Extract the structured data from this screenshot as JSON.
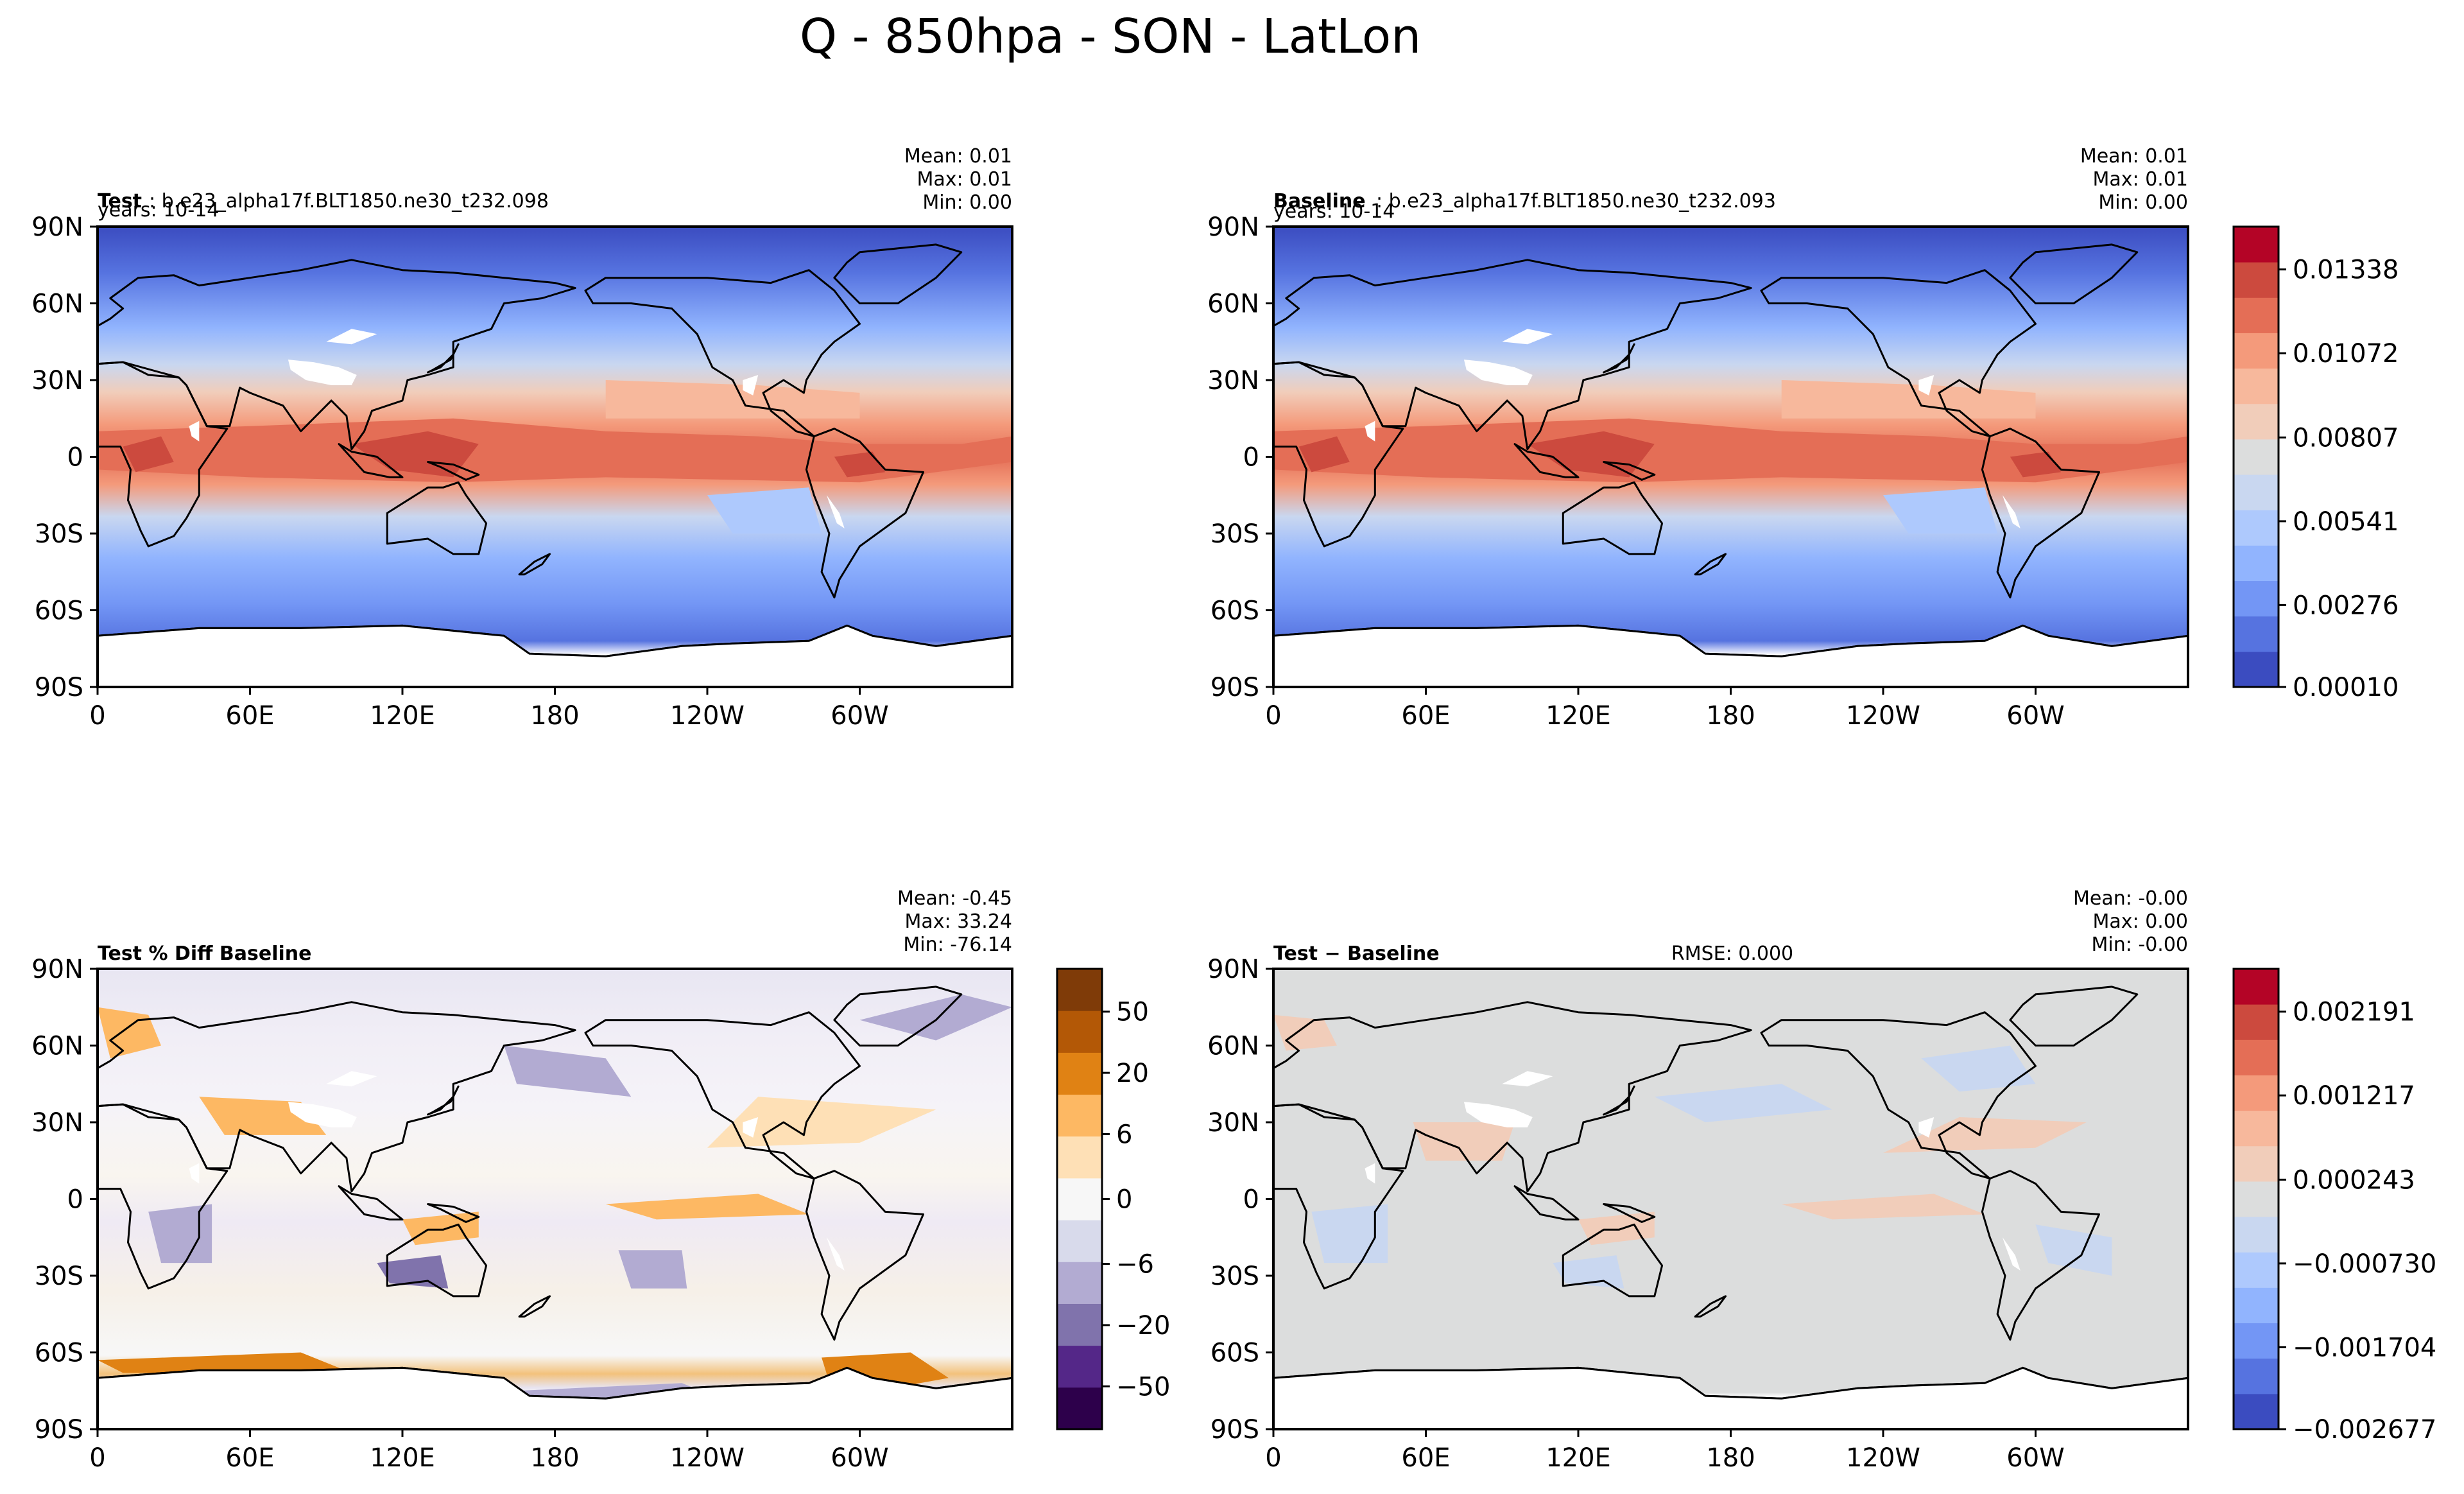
{
  "figure_title": "Q - 850hpa - SON - LatLon",
  "colors": {
    "test_baseline_scale": [
      "#3b4cc0",
      "#5673e0",
      "#7396f5",
      "#91b4fe",
      "#aec9fd",
      "#c9d7f0",
      "#dcdddd",
      "#f1cdba",
      "#f7b89c",
      "#f49a7b",
      "#e46e56",
      "#cc4a3e",
      "#b40426"
    ],
    "pct_diff_scale": [
      "#2d004b",
      "#542788",
      "#8073ac",
      "#b2abd2",
      "#d8daeb",
      "#f7f7f7",
      "#fee0b6",
      "#fdb863",
      "#e08214",
      "#b35806",
      "#7f3b08"
    ],
    "land": "#ffffff",
    "coast": "#000000"
  },
  "chart_data": [
    {
      "type": "heatmap",
      "panel": "test",
      "label_bold": "Test",
      "label_rest": ": b.e23_alpha17f.BLT1850.ne30_t232.098",
      "years": "years: 10-14",
      "stats": [
        "Mean:  0.01",
        "Max:  0.01",
        "Min:  0.00"
      ],
      "xticks": [
        "0",
        "60E",
        "120E",
        "180",
        "120W",
        "60W"
      ],
      "yticks": [
        "90N",
        "60N",
        "30N",
        "0",
        "30S",
        "60S",
        "90S"
      ],
      "xlim": [
        0,
        360
      ],
      "ylim": [
        -90,
        90
      ],
      "min": 0.0,
      "max": 0.01,
      "mean": 0.01
    },
    {
      "type": "heatmap",
      "panel": "baseline",
      "label_bold": "Baseline",
      "label_rest": ": b.e23_alpha17f.BLT1850.ne30_t232.093",
      "years": "years: 10-14",
      "stats": [
        "Mean:  0.01",
        "Max:  0.01",
        "Min:  0.00"
      ],
      "xticks": [
        "0",
        "60E",
        "120E",
        "180",
        "120W",
        "60W"
      ],
      "yticks": [
        "90N",
        "60N",
        "30N",
        "0",
        "30S",
        "60S",
        "90S"
      ],
      "xlim": [
        0,
        360
      ],
      "ylim": [
        -90,
        90
      ],
      "min": 0.0,
      "max": 0.01,
      "mean": 0.01,
      "colorbar_ticks": [
        "0.01338",
        "0.01072",
        "0.00807",
        "0.00541",
        "0.00276",
        "0.00010"
      ],
      "colorbar_range": [
        0.0001,
        0.0147
      ]
    },
    {
      "type": "heatmap",
      "panel": "pct_diff",
      "label_bold": "Test % Diff Baseline",
      "stats": [
        "Mean: -0.45",
        "Max: 33.24",
        "Min: -76.14"
      ],
      "xticks": [
        "0",
        "60E",
        "120E",
        "180",
        "120W",
        "60W"
      ],
      "yticks": [
        "90N",
        "60N",
        "30N",
        "0",
        "30S",
        "60S",
        "90S"
      ],
      "xlim": [
        0,
        360
      ],
      "ylim": [
        -90,
        90
      ],
      "min": -76.14,
      "max": 33.24,
      "mean": -0.45,
      "colorbar_ticks": [
        "50",
        "20",
        "6",
        "0",
        "−6",
        "−20",
        "−50"
      ],
      "colorbar_levels": [
        -100,
        -50,
        -20,
        -6,
        0,
        6,
        20,
        50,
        100
      ]
    },
    {
      "type": "heatmap",
      "panel": "diff",
      "label_bold": "Test − Baseline",
      "rmse": "RMSE: 0.000",
      "stats": [
        "Mean: -0.00",
        "Max:  0.00",
        "Min: -0.00"
      ],
      "xticks": [
        "0",
        "60E",
        "120E",
        "180",
        "120W",
        "60W"
      ],
      "yticks": [
        "90N",
        "60N",
        "30N",
        "0",
        "30S",
        "60S",
        "90S"
      ],
      "xlim": [
        0,
        360
      ],
      "ylim": [
        -90,
        90
      ],
      "min": -0.0,
      "max": 0.0,
      "mean": -0.0,
      "colorbar_ticks": [
        "0.002191",
        "0.001217",
        "0.000243",
        "−0.000730",
        "−0.001704",
        "−0.002677"
      ],
      "colorbar_range": [
        -0.002677,
        0.002678
      ]
    }
  ]
}
